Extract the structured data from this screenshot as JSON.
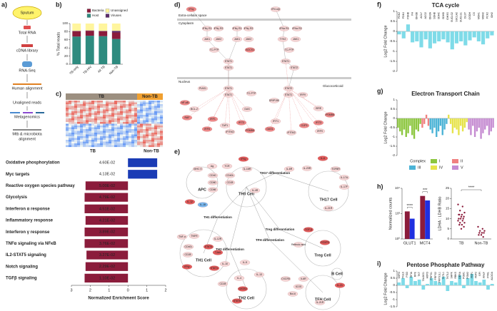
{
  "panel_labels": [
    "a)",
    "b)",
    "c)",
    "d)",
    "e)",
    "f)",
    "g)",
    "h)",
    "i)"
  ],
  "workflow": {
    "steps": [
      "Sputum",
      "Total RNA",
      "cDNA library",
      "RNA-Seq",
      "Human alignment",
      "Unaligned reads",
      "Metagenomics",
      [
        "Mtb & microbiota",
        "alignment"
      ]
    ]
  },
  "heatmap": {
    "groups": [
      "TB",
      "Non-TB"
    ]
  },
  "pathway": {
    "regions": [
      "Extra-cellular space",
      "Cytoplasm",
      "Nucleus",
      "Glucocorticoid"
    ],
    "nodes": [
      "IFNγ",
      "IFN α/β",
      "IFNγ R1",
      "IFNγ R2",
      "IFNγ R1",
      "IFNγ R2",
      "IFNα R1",
      "IFNα R2",
      "JAK1",
      "JAK2",
      "JAK1",
      "JAK2",
      "TYK2",
      "JAK1",
      "TC-PTP",
      "SOCS1",
      "TC-PTP",
      "STAT1",
      "STAT1",
      "STAT1",
      "STAT2",
      "STAT1",
      "STAT1",
      "PIAS1",
      "TC-PTP",
      "STAT2",
      "STAT1",
      "IRF9",
      "DRIP150",
      "BCL-2",
      "NF-κB",
      "GAS",
      "RAF",
      "IRF1",
      "TAP1",
      "IFIT3",
      "PSMB8",
      "IFITM2",
      "IRF8",
      "ISRE",
      "IFIT1",
      "OAS1",
      "IFITM2",
      "G1P3",
      "IFIT3",
      "IRF9",
      "PSMB8"
    ]
  },
  "network": {
    "processes": [
      "TH17 differentiation",
      "TH1 differentiation",
      "Treg differentiation",
      "TH2 differentiation",
      "TFH differentiation"
    ],
    "cells": [
      "APC",
      "TH0 Cell",
      "TH17 Cell",
      "TH1 Cell",
      "Treg Cell",
      "TH2 Cell",
      "TFH Cell",
      "B Cell"
    ],
    "genes": [
      "MHC II",
      "Ag",
      "TCR",
      "IFNγ",
      "IL-18R",
      "CD40",
      "CD40L",
      "CD80",
      "CD28",
      "CD86",
      "IL-12",
      "IL-18",
      "IL-4R",
      "IL-6R",
      "IL-23R",
      "TGFBR",
      "IL-17A",
      "IL-17F",
      "IL-6",
      "IL-21R",
      "TNF-α",
      "TNFR",
      "CD40L",
      "CD28",
      "IL-12R",
      "STAT4",
      "T-bet",
      "IFNγ",
      "STAT1",
      "IL-10",
      "IL-5",
      "IL-13",
      "IL-4",
      "GATA3",
      "STAT6",
      "CD28",
      "TGF-β",
      "Retinoic acid",
      "FOXP3",
      "CXCR5",
      "IL6R",
      "ICOS",
      "Bcl-6",
      "IL-21",
      "IL-21R"
    ]
  },
  "chart_data": [
    {
      "type": "stacked_bar",
      "ylabel": "% Total reads",
      "categories": [
        "TB-only",
        "TB-HIV",
        "All TB",
        "Non-TB"
      ],
      "series": [
        {
          "name": "Host",
          "color": "#2e8b7f",
          "values": [
            68,
            70,
            69,
            62
          ]
        },
        {
          "name": "Bacteria",
          "color": "#8b1c3b",
          "values": [
            13,
            12,
            12,
            16
          ]
        },
        {
          "name": "Viruses",
          "color": "#5b2b6b",
          "values": [
            1,
            1,
            1,
            4
          ]
        },
        {
          "name": "Unassigned",
          "color": "#fff59d",
          "values": [
            18,
            17,
            18,
            18
          ]
        }
      ],
      "ylim": [
        0,
        100
      ],
      "yticks": [
        0,
        20,
        40,
        60,
        80,
        100
      ]
    },
    {
      "type": "hbar",
      "groups": [
        "TB",
        "Non-TB"
      ],
      "colors": [
        "#8b1c3b",
        "#1a3bb5"
      ],
      "categories": [
        "Oxidative phosphorylation",
        "Myc targets",
        "Reactive oxygen species pathway",
        "Glycolysis",
        "Interferon α response",
        "Inflammatory response",
        "Interferon γ response",
        "TNFα signaling via NFκB",
        "IL2-STAT5 signaling",
        "Notch signaling",
        "TGFβ signaling"
      ],
      "values": [
        1.55,
        1.55,
        -2.25,
        -2.3,
        -2.3,
        -2.25,
        -2.3,
        -2.3,
        -2.2,
        -2.25,
        -2.3
      ],
      "fdr": [
        "4.60E-02",
        "4.13E-02",
        "5.00E-02",
        "4.79E-02",
        "4.51E-02",
        "4.21E-02",
        "3.89E-02",
        "3.76E-02",
        "3.27E-02",
        "2.29E-02",
        "1.10E-02"
      ],
      "xlabel": "Normalized Enrichment Score",
      "xlim": [
        -3,
        2
      ],
      "xticks": [
        {
          "value": -3,
          "label": "3"
        },
        {
          "value": -2,
          "label": "2"
        },
        {
          "value": -1,
          "label": "1"
        },
        0,
        1,
        2
      ]
    },
    {
      "type": "bar",
      "title": "TCA cycle",
      "ylabel": "Log2 Fold Change",
      "color": "#7fdbe8",
      "categories": [
        "PDK2",
        "PDK4",
        "PDHB",
        "FH",
        "IDH3B",
        "ACLY",
        "ACO2",
        "IDH3A",
        "SDHB",
        "SDHC",
        "SDHD",
        "IDH3G",
        "SUCLG2",
        "SUCLA2",
        "SUCLG1",
        "DLST",
        "OGDH",
        "CS",
        "MDH1",
        "MDH2",
        "PCK2",
        "IDH2"
      ],
      "values": [
        -0.15,
        -0.35,
        0.35,
        -0.55,
        -0.5,
        -0.8,
        -0.4,
        -0.85,
        -0.6,
        -0.5,
        -0.4,
        -0.55,
        -0.9,
        -0.6,
        -0.5,
        -0.7,
        -0.45,
        -0.3,
        -0.5,
        -0.65,
        -0.35,
        -0.2
      ],
      "ylim": [
        -2,
        1
      ],
      "yticks": [
        1,
        0.5,
        0,
        -0.5,
        -1,
        -1.5,
        -2
      ]
    },
    {
      "type": "bar_groups",
      "title": "Electron Transport Chain",
      "ylabel": "Log2 Fold Change",
      "legend_title": "Complex",
      "series": [
        {
          "name": "I",
          "color": "#8cc63f",
          "values": [
            -0.5,
            -0.7,
            -0.9,
            -0.6,
            -1.0,
            -0.8,
            -0.4,
            -0.9,
            -1.1,
            -0.6,
            -0.7,
            -0.3
          ]
        },
        {
          "name": "II",
          "color": "#f08080",
          "values": [
            -0.5,
            -0.3,
            0.2,
            -0.4
          ]
        },
        {
          "name": "III",
          "color": "#4bb3d6",
          "values": [
            -0.6,
            -0.8,
            -0.5,
            -1.0,
            -0.7,
            -0.4,
            -0.9,
            -0.6,
            -0.3
          ]
        },
        {
          "name": "IV",
          "color": "#e6e34a",
          "values": [
            0.2,
            -0.3,
            -0.8,
            -0.5,
            -0.6,
            -0.9,
            -0.4,
            -0.7,
            -0.5,
            -0.2
          ]
        },
        {
          "name": "V",
          "color": "#c58bd1",
          "values": [
            -0.6,
            -0.9,
            -0.4,
            -1.0,
            -0.7,
            -0.5,
            -1.1,
            -0.8,
            -0.6,
            -0.4,
            -0.9,
            -0.7,
            -0.5
          ]
        }
      ],
      "ylim": [
        -2,
        1
      ],
      "yticks": [
        1,
        0.5,
        0,
        -0.5,
        -1,
        -1.5,
        -2
      ]
    },
    {
      "type": "grouped_bar",
      "ylabel": "Normalized counts",
      "log": true,
      "categories": [
        "GLUT1",
        "MCT4"
      ],
      "series": [
        {
          "name": "TB",
          "color": "#8b1c3b",
          "values": [
            150,
            2500
          ]
        },
        {
          "name": "Non-TB",
          "color": "#1f2fe0",
          "values": [
            40,
            1100
          ]
        }
      ],
      "ylim": [
        1,
        10000
      ],
      "yticks": [
        {
          "value": 1,
          "label": "10⁰"
        },
        {
          "value": 100,
          "label": "10²"
        },
        {
          "value": 10000,
          "label": "10⁴"
        }
      ],
      "significance": [
        "****",
        "***"
      ]
    },
    {
      "type": "strip",
      "ylabel": "LDHA : LDHB Ratio",
      "categories": [
        "TB",
        "Non-TB"
      ],
      "color": "#8b1c3b",
      "values": [
        [
          17,
          16,
          14,
          13,
          12,
          12,
          11,
          11,
          10,
          10,
          10,
          9,
          9,
          8,
          8,
          7,
          7,
          6,
          5,
          12
        ],
        [
          6,
          5,
          4,
          4,
          3,
          3,
          3,
          2,
          2,
          1
        ]
      ],
      "ylim": [
        0,
        25
      ],
      "yticks": [
        0,
        5,
        10,
        15,
        20,
        25
      ],
      "significance": "****"
    },
    {
      "type": "bar",
      "title": "Pentose Phosphate Pathway",
      "ylabel": "Log2 Fold Change",
      "color": "#7fdbe8",
      "categories": [
        "G6PD",
        "PGLS",
        "PGD",
        "RPIA",
        "RPE",
        "TKT",
        "TALDO1",
        "H6PD",
        "PRPS1",
        "PRPS2",
        "PRPS1L1",
        "TKTL1",
        "TKTL2",
        "SHPK",
        "RBKS",
        "DERA",
        "PGM1",
        "PGM2",
        "FBP1",
        "FBP2",
        "GPI",
        "PFKP",
        "PFKL",
        "ALDOA"
      ],
      "values": [
        0.2,
        0.5,
        -0.2,
        0.6,
        0.3,
        0.4,
        -0.3,
        0.1,
        0.5,
        0.3,
        0.2,
        0.6,
        -0.4,
        0.3,
        0.2,
        0.7,
        -0.2,
        0.5,
        0.8,
        0.3,
        0.2,
        0.4,
        -0.3,
        0.1
      ],
      "ylim": [
        -1.5,
        1
      ],
      "yticks": [
        1,
        0.5,
        0,
        -0.5,
        -1,
        -1.5
      ]
    }
  ]
}
